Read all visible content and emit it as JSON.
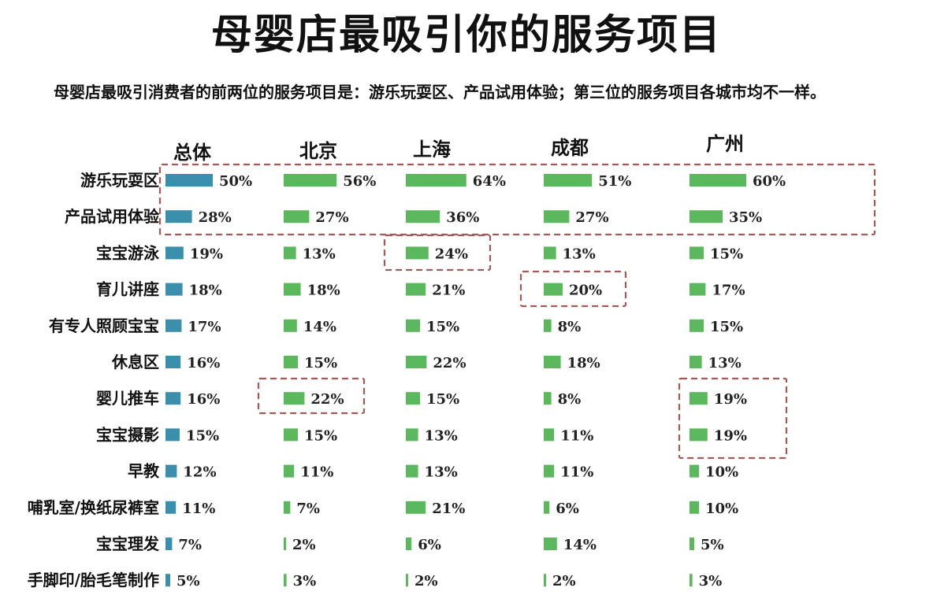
{
  "title": "母婴店最吸引你的服务项目",
  "subtitle": "母婴店最吸引消费者的前两位的服务项目是：游乐玩耍区、产品试用体验；第三位的服务项目各城市均不一样。",
  "colors": {
    "overall": "#3a8fad",
    "city": "#5cb85c",
    "highlight": "#a15a58"
  },
  "chart_data": {
    "type": "bar",
    "orientation": "horizontal-small-multiples",
    "title": "母婴店最吸引你的服务项目",
    "categories": [
      "游乐玩耍区",
      "产品试用体验",
      "宝宝游泳",
      "育儿讲座",
      "有专人照顾宝宝",
      "休息区",
      "婴儿推车",
      "宝宝摄影",
      "早教",
      "哺乳室/换纸尿裤室",
      "宝宝理发",
      "手脚印/胎毛笔制作"
    ],
    "series": [
      {
        "name": "总体",
        "values": [
          50,
          28,
          19,
          18,
          17,
          16,
          16,
          15,
          12,
          11,
          7,
          5
        ]
      },
      {
        "name": "北京",
        "values": [
          56,
          27,
          13,
          18,
          14,
          15,
          22,
          15,
          11,
          7,
          2,
          3
        ]
      },
      {
        "name": "上海",
        "values": [
          64,
          36,
          24,
          21,
          15,
          22,
          15,
          13,
          13,
          21,
          6,
          2
        ]
      },
      {
        "name": "成都",
        "values": [
          51,
          27,
          13,
          20,
          8,
          18,
          8,
          11,
          11,
          6,
          14,
          2
        ]
      },
      {
        "name": "广州",
        "values": [
          60,
          35,
          15,
          17,
          15,
          13,
          19,
          19,
          10,
          10,
          5,
          3
        ]
      }
    ],
    "value_suffix": "%",
    "highlights": [
      {
        "series": "all",
        "categories": [
          "游乐玩耍区",
          "产品试用体验"
        ]
      },
      {
        "series": "上海",
        "categories": [
          "宝宝游泳"
        ]
      },
      {
        "series": "成都",
        "categories": [
          "育儿讲座"
        ]
      },
      {
        "series": "北京",
        "categories": [
          "婴儿推车"
        ]
      },
      {
        "series": "广州",
        "categories": [
          "婴儿推车",
          "宝宝摄影"
        ]
      }
    ],
    "grid": false,
    "legend": "none"
  }
}
